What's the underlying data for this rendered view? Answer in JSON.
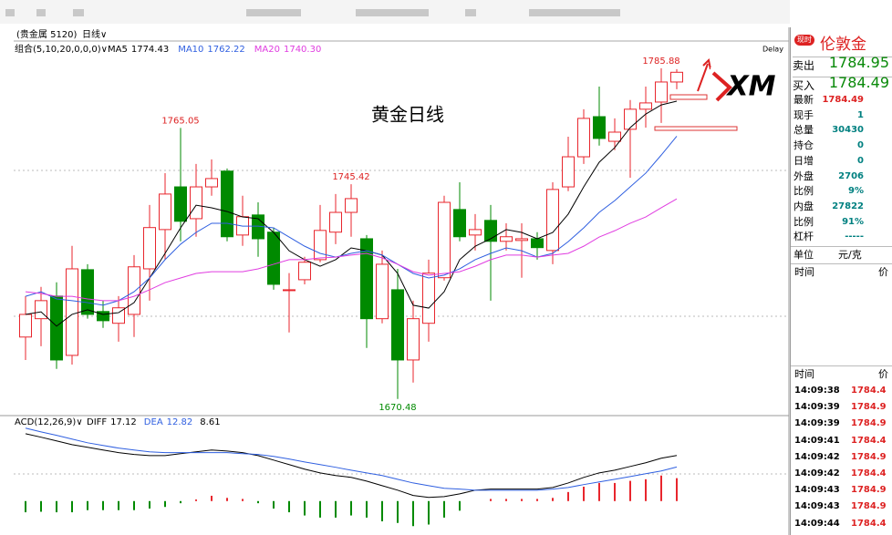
{
  "header": {
    "symbol": "(贵金属 5120)",
    "period": "日线∨"
  },
  "chart_data": {
    "type": "candlestick",
    "title": "黄金日线",
    "indicator": "组合(5,10,20,0,0,0)∨",
    "delay": "Delay",
    "logo": "XM",
    "ylim": [
      1665,
      1795.4
    ],
    "up_color": "#e8262d",
    "down_color": "#008a00",
    "candles": {
      "open": [
        1692.1,
        1698.5,
        1706.4,
        1685.7,
        1715.6,
        1701.0,
        1696.9,
        1700.0,
        1715.9,
        1729.6,
        1744.5,
        1733.4,
        1744.5,
        1750.0,
        1727.7,
        1734.7,
        1728.7,
        1708.6,
        1712.1,
        1719.1,
        1728.7,
        1735.6,
        1726.4,
        1698.5,
        1708.6,
        1684.1,
        1696.9,
        1712.8,
        1736.6,
        1727.7,
        1732.8,
        1725.5,
        1725.8,
        1726.4,
        1722.3,
        1744.5,
        1755.0,
        1769.0,
        1760.4,
        1764.6,
        1771.6,
        1774.1,
        1781.1
      ],
      "high": [
        1706.4,
        1709.6,
        1711.2,
        1723.9,
        1717.5,
        1704.8,
        1706.4,
        1720.7,
        1738.2,
        1749.3,
        1765.05,
        1752.5,
        1754.1,
        1750.9,
        1741.4,
        1739.1,
        1730.3,
        1714.4,
        1720.1,
        1738.2,
        1742.0,
        1745.42,
        1727.7,
        1722.3,
        1715.9,
        1704.8,
        1719.1,
        1741.4,
        1746.1,
        1735.0,
        1738.2,
        1731.8,
        1731.8,
        1728.7,
        1746.1,
        1762.0,
        1771.6,
        1779.5,
        1768.4,
        1774.8,
        1779.5,
        1785.88,
        1785.6
      ],
      "low": [
        1684.1,
        1688.9,
        1681.0,
        1682.5,
        1698.5,
        1695.3,
        1690.5,
        1692.1,
        1704.8,
        1719.1,
        1725.5,
        1727.1,
        1741.4,
        1725.5,
        1723.9,
        1720.1,
        1708.6,
        1693.7,
        1710.5,
        1718.2,
        1724.5,
        1727.1,
        1688.3,
        1696.9,
        1670.48,
        1676.2,
        1690.5,
        1711.8,
        1725.5,
        1722.3,
        1704.8,
        1722.3,
        1712.8,
        1719.1,
        1717.5,
        1743.0,
        1752.5,
        1758.9,
        1757.3,
        1747.7,
        1765.2,
        1766.8,
        1778.6
      ],
      "close": [
        1700.0,
        1704.8,
        1684.1,
        1715.9,
        1700.0,
        1697.8,
        1702.3,
        1716.6,
        1730.3,
        1742.0,
        1732.5,
        1744.5,
        1747.4,
        1727.1,
        1734.1,
        1726.4,
        1710.5,
        1708.6,
        1718.2,
        1729.3,
        1735.6,
        1740.4,
        1698.5,
        1717.5,
        1684.1,
        1698.5,
        1714.4,
        1739.1,
        1727.1,
        1729.6,
        1725.5,
        1727.1,
        1726.4,
        1723.3,
        1743.6,
        1755.0,
        1768.4,
        1761.4,
        1763.6,
        1771.6,
        1773.8,
        1781.1,
        1784.49
      ]
    },
    "series": [
      {
        "name": "MA5",
        "value": "1774.43",
        "color": "#000000",
        "values": [
          1700.0,
          1700.9,
          1695.9,
          1700.0,
          1701.6,
          1700.0,
          1700.6,
          1704.1,
          1712.7,
          1721.3,
          1730.2,
          1738.1,
          1737.2,
          1735.9,
          1734.0,
          1733.4,
          1728.6,
          1722.2,
          1719.1,
          1716.8,
          1719.1,
          1723.2,
          1722.2,
          1720.7,
          1714.3,
          1703.2,
          1702.2,
          1707.9,
          1719.1,
          1723.8,
          1726.4,
          1729.6,
          1728.6,
          1726.4,
          1728.6,
          1735.0,
          1744.5,
          1753.1,
          1758.2,
          1765.2,
          1769.9,
          1773.1,
          1774.4
        ]
      },
      {
        "name": "MA10",
        "value": "1762.22",
        "color": "#2f5fe0",
        "values": [
          1706.3,
          1707.9,
          1705.4,
          1704.8,
          1704.1,
          1703.2,
          1704.8,
          1707.9,
          1712.7,
          1719.1,
          1724.5,
          1728.6,
          1731.8,
          1731.8,
          1730.8,
          1730.8,
          1730.2,
          1727.0,
          1723.8,
          1721.3,
          1720.0,
          1721.3,
          1722.2,
          1720.7,
          1717.5,
          1714.3,
          1712.7,
          1713.7,
          1715.9,
          1719.1,
          1721.3,
          1723.2,
          1722.2,
          1720.0,
          1721.3,
          1725.4,
          1730.2,
          1735.6,
          1739.7,
          1744.5,
          1749.3,
          1755.6,
          1762.2
        ]
      },
      {
        "name": "MA20",
        "value": "1740.30",
        "color": "#e03ce0",
        "values": [
          1707.9,
          1707.3,
          1706.3,
          1706.3,
          1705.4,
          1704.8,
          1704.8,
          1706.3,
          1708.6,
          1711.1,
          1712.7,
          1714.3,
          1714.9,
          1714.9,
          1714.9,
          1715.9,
          1717.5,
          1719.1,
          1719.1,
          1719.7,
          1720.0,
          1720.7,
          1721.3,
          1719.7,
          1717.5,
          1714.9,
          1713.7,
          1714.3,
          1714.9,
          1716.8,
          1719.1,
          1720.7,
          1720.7,
          1720.0,
          1720.7,
          1721.3,
          1723.8,
          1727.0,
          1729.2,
          1731.8,
          1734.0,
          1737.2,
          1740.3
        ]
      }
    ],
    "high_marks": [
      1765.05,
      1745.42,
      1785.88
    ],
    "low_marks": [
      1670.48
    ],
    "macd": {
      "title": "ACD(12,26,9)∨",
      "ylim": [
        -10,
        28
      ],
      "series": [
        {
          "name": "DIFF",
          "value": "17.12",
          "color": "#000000",
          "values": [
            25.3,
            24.0,
            22.6,
            21.2,
            20.2,
            19.2,
            18.2,
            17.5,
            17.1,
            17.1,
            17.8,
            18.5,
            19.2,
            18.8,
            18.2,
            17.1,
            15.4,
            13.7,
            12.0,
            10.6,
            9.6,
            8.9,
            7.5,
            5.8,
            4.1,
            2.1,
            1.4,
            1.7,
            2.7,
            4.1,
            4.5,
            4.5,
            4.5,
            4.5,
            5.1,
            6.8,
            8.9,
            10.6,
            11.6,
            13.0,
            14.4,
            16.1,
            17.12
          ]
        },
        {
          "name": "DEA",
          "value": "12.82",
          "color": "#2f5fe0",
          "values": [
            27.4,
            26.0,
            24.7,
            23.3,
            21.9,
            20.9,
            19.9,
            19.2,
            18.5,
            18.2,
            18.2,
            18.2,
            18.2,
            18.2,
            17.8,
            17.5,
            16.8,
            15.8,
            14.7,
            13.7,
            12.7,
            11.6,
            10.6,
            9.6,
            8.2,
            6.8,
            5.8,
            4.8,
            4.5,
            4.1,
            4.1,
            4.1,
            4.1,
            4.1,
            4.5,
            5.1,
            6.2,
            7.2,
            8.2,
            9.2,
            10.3,
            11.3,
            12.82
          ]
        }
      ],
      "hist": {
        "value": "8.61",
        "values": [
          -4.2,
          -4.0,
          -4.2,
          -4.2,
          -3.4,
          -3.4,
          -3.4,
          -3.4,
          -2.8,
          -2.2,
          -0.8,
          0.6,
          2.0,
          1.2,
          0.8,
          -0.8,
          -2.8,
          -4.2,
          -5.4,
          -6.2,
          -6.2,
          -5.4,
          -6.2,
          -7.6,
          -8.2,
          -9.4,
          -8.8,
          -6.2,
          -3.6,
          0,
          0.8,
          0.8,
          0.8,
          0.8,
          1.2,
          3.4,
          5.4,
          6.8,
          6.8,
          7.6,
          8.2,
          9.6,
          8.61
        ]
      }
    }
  },
  "quote": {
    "badge": "现时",
    "name": "伦敦金",
    "sell": {
      "label": "卖出",
      "value": 1784.95
    },
    "buy": {
      "label": "买入",
      "value": 1784.49
    },
    "rows": [
      [
        "最新",
        1784.49
      ],
      [
        "现手",
        1
      ],
      [
        "总量",
        30430
      ],
      [
        "持仓",
        0
      ],
      [
        "日增",
        0
      ],
      [
        "外盘",
        2706
      ],
      [
        "比例",
        "9%"
      ],
      [
        "内盘",
        27822
      ],
      [
        "比例",
        "91%"
      ],
      [
        "杠杆",
        "-----"
      ]
    ],
    "unit": [
      "单位",
      "元/克"
    ],
    "head1": [
      "时间",
      "价"
    ],
    "head2": [
      "时间",
      "价"
    ],
    "ticks": [
      [
        "14:09:38",
        "1784.4"
      ],
      [
        "14:09:39",
        "1784.9"
      ],
      [
        "14:09:39",
        "1784.9"
      ],
      [
        "14:09:41",
        "1784.4"
      ],
      [
        "14:09:42",
        "1784.9"
      ],
      [
        "14:09:42",
        "1784.4"
      ],
      [
        "14:09:43",
        "1784.9"
      ],
      [
        "14:09:43",
        "1784.9"
      ],
      [
        "14:09:44",
        "1784.4"
      ]
    ]
  }
}
